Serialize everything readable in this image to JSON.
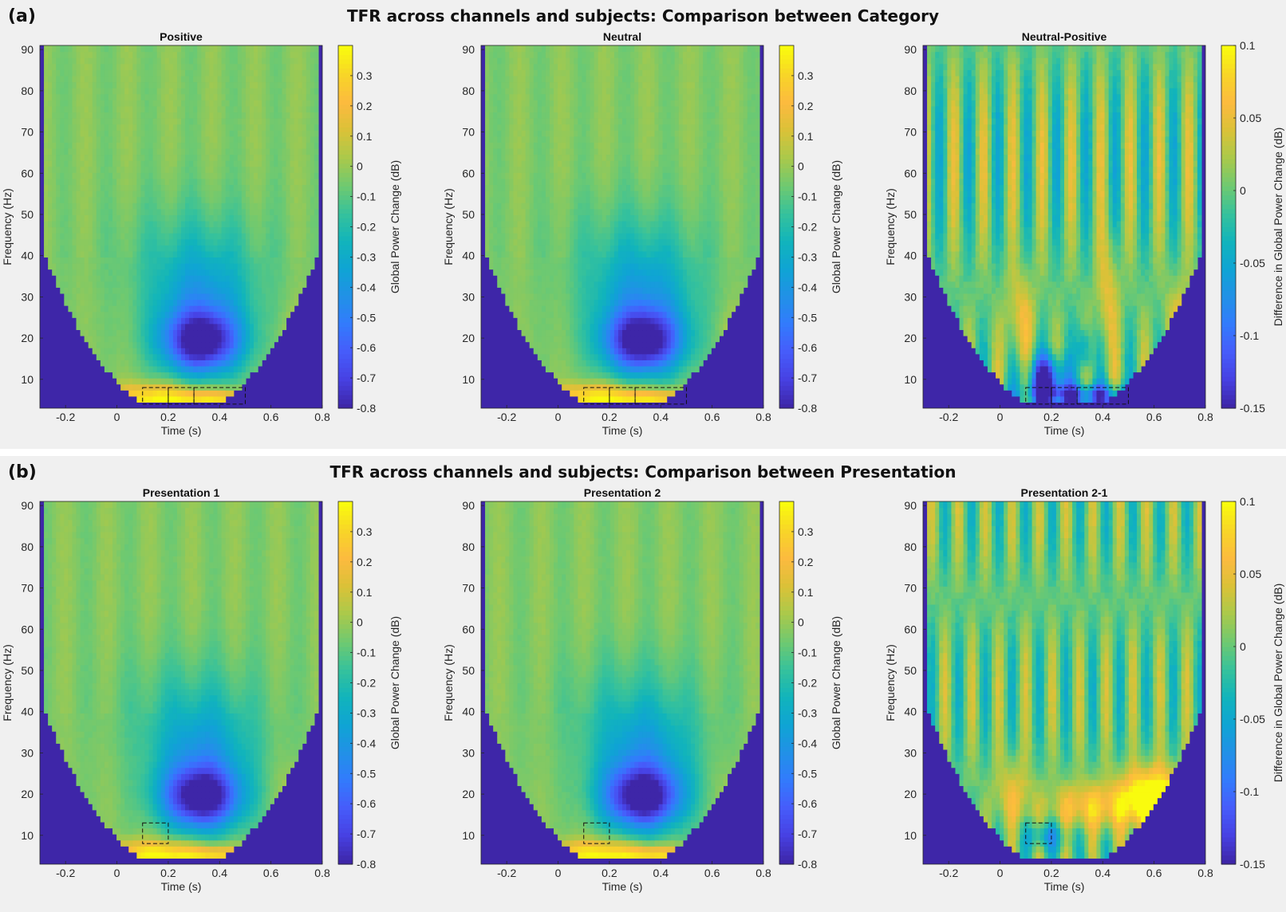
{
  "figure": {
    "panels": [
      {
        "letter": "(a)",
        "title": "TFR across channels and subjects: Comparison between Category",
        "plots": [
          {
            "title": "Positive",
            "kind": "power",
            "cbar_label": "Global Power Change (dB)",
            "boxes": [
              [
                0.1,
                0.2
              ],
              [
                0.2,
                0.3
              ],
              [
                0.3,
                0.5
              ]
            ],
            "box_freq": [
              4,
              8
            ]
          },
          {
            "title": "Neutral",
            "kind": "power",
            "cbar_label": "Global Power Change (dB)",
            "boxes": [
              [
                0.1,
                0.2
              ],
              [
                0.2,
                0.3
              ],
              [
                0.3,
                0.5
              ]
            ],
            "box_freq": [
              4,
              8
            ]
          },
          {
            "title": "Neutral-Positive",
            "kind": "diff_category",
            "cbar_label": "Difference in Global Power Change (dB)",
            "boxes": [
              [
                0.1,
                0.2
              ],
              [
                0.2,
                0.3
              ],
              [
                0.3,
                0.5
              ]
            ],
            "box_freq": [
              4,
              8
            ]
          }
        ]
      },
      {
        "letter": "(b)",
        "title": "TFR across channels and subjects: Comparison between Presentation",
        "plots": [
          {
            "title": "Presentation 1",
            "kind": "power",
            "cbar_label": "Global Power Change (dB)",
            "boxes": [
              [
                0.1,
                0.2
              ]
            ],
            "box_freq": [
              8,
              13
            ]
          },
          {
            "title": "Presentation 2",
            "kind": "power",
            "cbar_label": "Global Power Change (dB)",
            "boxes": [
              [
                0.1,
                0.2
              ]
            ],
            "box_freq": [
              8,
              13
            ]
          },
          {
            "title": "Presentation 2-1",
            "kind": "diff_presentation",
            "cbar_label": "Difference in Global Power Change (dB)",
            "boxes": [
              [
                0.1,
                0.2
              ]
            ],
            "box_freq": [
              8,
              13
            ]
          }
        ]
      }
    ]
  },
  "chart_data": {
    "type": "heatmap",
    "colormap": "parula",
    "xlabel": "Time (s)",
    "ylabel": "Frequency (Hz)",
    "xlim": [
      -0.3,
      0.8
    ],
    "ylim": [
      3,
      91
    ],
    "xticks": [
      -0.2,
      0,
      0.2,
      0.4,
      0.6,
      0.8
    ],
    "xtick_labels": [
      "-0.2",
      "0",
      "0.2",
      "0.4",
      "0.6",
      "0.8"
    ],
    "yticks": [
      10,
      20,
      30,
      40,
      50,
      60,
      70,
      80,
      90
    ],
    "yticks_labels": [
      "10",
      "20",
      "30",
      "40",
      "50",
      "60",
      "70",
      "80",
      "90"
    ],
    "power_colorbar": {
      "clim": [
        -0.8,
        0.4
      ],
      "ticks": [
        -0.8,
        -0.7,
        -0.6,
        -0.5,
        -0.4,
        -0.3,
        -0.2,
        -0.1,
        0,
        0.1,
        0.2,
        0.3
      ],
      "tick_labels": [
        "-0.8",
        "-0.7",
        "-0.6",
        "-0.5",
        "-0.4",
        "-0.3",
        "-0.2",
        "-0.1",
        "0",
        "0.1",
        "0.2",
        "0.3"
      ]
    },
    "diff_colorbar": {
      "clim": [
        -0.15,
        0.1
      ],
      "ticks": [
        -0.15,
        -0.1,
        -0.05,
        0,
        0.05,
        0.1
      ],
      "tick_labels": [
        "-0.15",
        "-0.1",
        "-0.05",
        "0",
        "0.05",
        "0.1"
      ]
    },
    "features": {
      "power_beta_desync": {
        "time": [
          0.15,
          0.5
        ],
        "freq": [
          12,
          30
        ],
        "value": -0.8
      },
      "power_theta_sync": {
        "time": [
          0.0,
          0.55
        ],
        "freq": [
          4,
          9
        ],
        "value": 0.35
      },
      "category_diff_min": {
        "time": [
          0.1,
          0.45
        ],
        "freq": [
          4,
          10
        ],
        "value": -0.15
      },
      "presentation_diff_max": {
        "time": [
          0.5,
          0.7
        ],
        "freq": [
          13,
          25
        ],
        "value": 0.1
      }
    }
  }
}
